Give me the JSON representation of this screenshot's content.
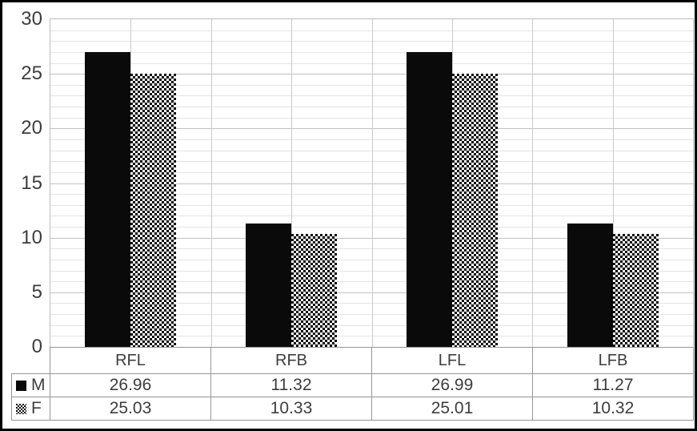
{
  "chart_data": {
    "type": "bar",
    "title": "",
    "xlabel": "",
    "ylabel": "",
    "categories": [
      "RFL",
      "RFB",
      "LFL",
      "LFB"
    ],
    "series": [
      {
        "name": "M",
        "swatch": "solid-black-square",
        "pattern": "solid",
        "values": [
          26.96,
          11.32,
          26.99,
          11.27
        ]
      },
      {
        "name": "F",
        "swatch": "checkered-square",
        "pattern": "checker",
        "values": [
          25.03,
          10.33,
          25.01,
          10.32
        ]
      }
    ],
    "ylim": [
      0,
      30
    ],
    "y_ticks": [
      0,
      5,
      10,
      15,
      20,
      25,
      30
    ],
    "y_minor_step": 1,
    "y_major_step": 5,
    "grid": {
      "horizontal_minor": true,
      "horizontal_major": true,
      "vertical_half_category": true
    },
    "legend_position": "table-left-column",
    "colors": {
      "bar_m": "#0a0a0a",
      "bar_f_background": "#0a0a0a",
      "bar_f_dots": "#ffffff",
      "gridline_minor": "#e4e4e4",
      "gridline_major": "#c2c2c2",
      "table_border": "#969696",
      "text": "#3d3d3d",
      "frame_border": "#000000"
    }
  }
}
